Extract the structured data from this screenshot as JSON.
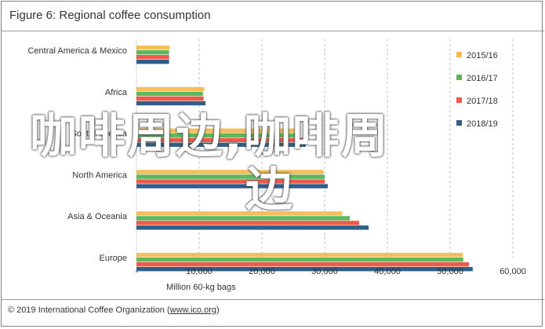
{
  "title": "Figure 6: Regional coffee consumption",
  "footer": {
    "copyright": "© 2019 International Coffee Organization",
    "url": "www.ico.org"
  },
  "watermark": {
    "line1": "咖啡周边,咖啡周",
    "line2": "边"
  },
  "colors": {
    "2015/16": "#f5be5b",
    "2016/17": "#5cb85c",
    "2017/18": "#ef5a4a",
    "2018/19": "#2f5e86"
  },
  "chart_data": {
    "type": "bar",
    "orientation": "horizontal",
    "categories": [
      "Central America & Mexico",
      "Africa",
      "South America",
      "North America",
      "Asia & Oceania",
      "Europe"
    ],
    "series": [
      {
        "name": "2015/16",
        "values": [
          5300,
          10800,
          25200,
          29800,
          32800,
          52000
        ]
      },
      {
        "name": "2016/17",
        "values": [
          5200,
          10600,
          26000,
          30000,
          34000,
          52100
        ]
      },
      {
        "name": "2017/18",
        "values": [
          5200,
          10700,
          26500,
          30000,
          35500,
          53000
        ]
      },
      {
        "name": "2018/19",
        "values": [
          5200,
          11000,
          27000,
          30500,
          37000,
          53600
        ]
      }
    ],
    "xlabel": "Million 60-kg bags",
    "xlim": [
      0,
      60000
    ],
    "xticks": [
      "-",
      "10,000",
      "20,000",
      "30,000",
      "40,000",
      "50,000",
      "60,000"
    ],
    "grid": "vertical dashed",
    "legend": "right"
  }
}
